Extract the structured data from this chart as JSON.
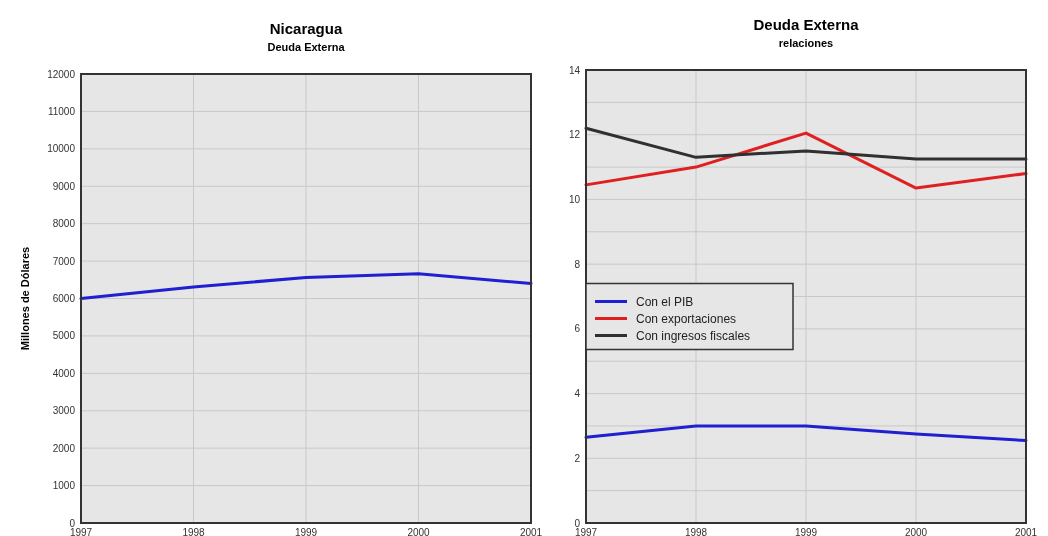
{
  "chart_data": [
    {
      "type": "line",
      "title": "Nicaragua",
      "subtitle": "Deuda Externa",
      "ylabel": "Millones de Dólares",
      "x": [
        1997,
        1998,
        1999,
        2000,
        2001
      ],
      "xlim": [
        1997,
        2001
      ],
      "xticks": [
        1997,
        1998,
        1999,
        2000,
        2001
      ],
      "ylim": [
        0,
        12000
      ],
      "yticks": [
        0,
        1000,
        2000,
        3000,
        4000,
        5000,
        6000,
        7000,
        8000,
        9000,
        10000,
        11000,
        12000
      ],
      "grid": true,
      "series": [
        {
          "color": "#2020d0",
          "values": [
            6000,
            6310,
            6560,
            6660,
            6400
          ]
        }
      ]
    },
    {
      "type": "line",
      "title": "Deuda Externa",
      "subtitle": "relaciones",
      "x": [
        1997,
        1998,
        1999,
        2000,
        2001
      ],
      "xlim": [
        1997,
        2001
      ],
      "xticks": [
        1997,
        1998,
        1999,
        2000,
        2001
      ],
      "ylim": [
        0,
        14
      ],
      "yticks": [
        0,
        {
          "value": 1,
          "label": null
        },
        2,
        {
          "value": 3,
          "label": null
        },
        4,
        {
          "value": 5,
          "label": null
        },
        6,
        {
          "value": 7,
          "label": null
        },
        8,
        {
          "value": 9,
          "label": null
        },
        10,
        {
          "value": 11,
          "label": null
        },
        12,
        {
          "value": 13,
          "label": null
        },
        14
      ],
      "grid": true,
      "legend": "left",
      "series": [
        {
          "name": "Con el PIB",
          "color": "#2020d0",
          "values": [
            2.65,
            3.0,
            3.0,
            2.75,
            2.55
          ]
        },
        {
          "name": "Con exportaciones",
          "color": "#e02020",
          "values": [
            10.45,
            11.0,
            12.05,
            10.35,
            10.8
          ]
        },
        {
          "name": "Con ingresos fiscales",
          "color": "#303030",
          "values": [
            12.2,
            11.3,
            11.5,
            11.25,
            11.25
          ]
        }
      ]
    }
  ]
}
